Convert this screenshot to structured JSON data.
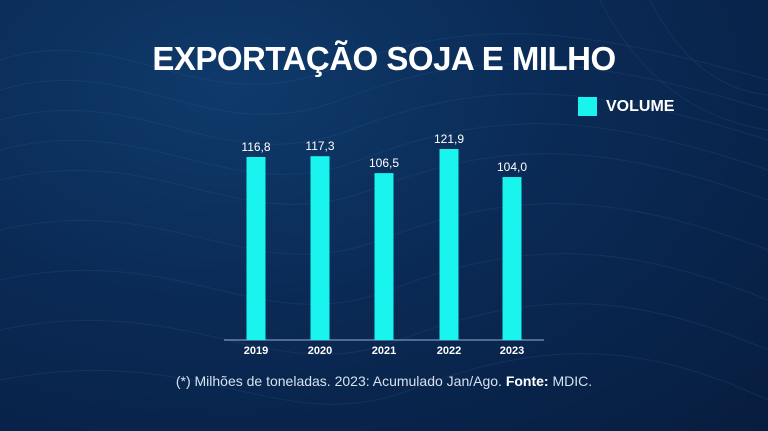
{
  "title": "EXPORTAÇÃO SOJA E MILHO",
  "legend": {
    "label": "VOLUME",
    "color": "#19f5ee"
  },
  "chart_data": {
    "type": "bar",
    "categories": [
      "2019",
      "2020",
      "2021",
      "2022",
      "2023"
    ],
    "series": [
      {
        "name": "VOLUME",
        "values": [
          116.8,
          117.3,
          106.5,
          121.9,
          104.0
        ]
      }
    ],
    "value_labels": [
      "116,8",
      "117,3",
      "106,5",
      "121,9",
      "104,0"
    ],
    "ylim": [
      0,
      121.9
    ],
    "grid": false,
    "legend_position": "top-right",
    "bar_color": "#19f5ee"
  },
  "footnote": {
    "text": "(*) Milhões de toneladas. 2023: Acumulado Jan/Ago.",
    "source_label": "Fonte:",
    "source_value": "MDIC."
  }
}
